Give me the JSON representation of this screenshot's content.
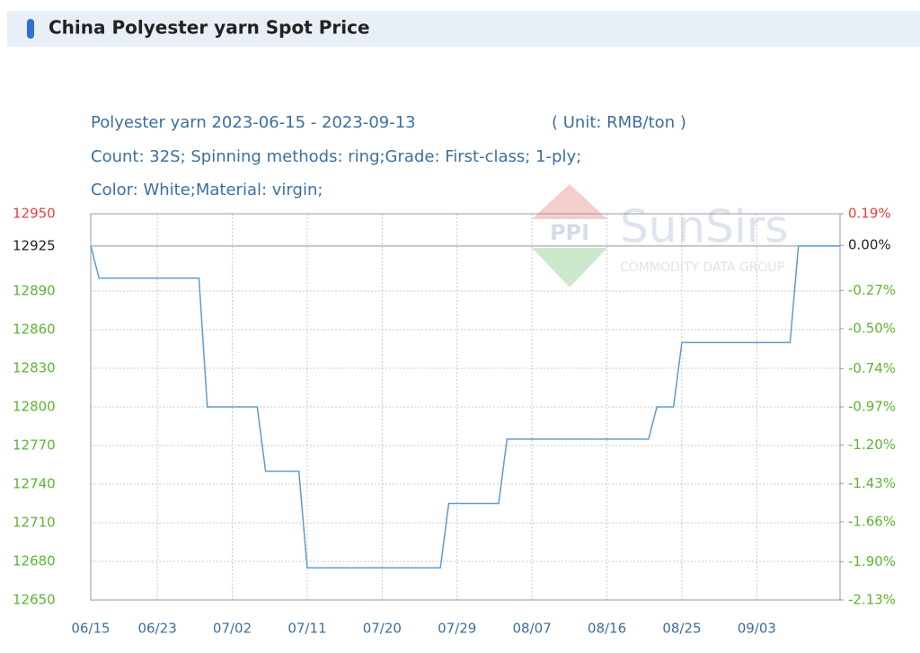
{
  "header": {
    "title": "China Polyester yarn Spot Price"
  },
  "chart_data": {
    "type": "line",
    "subtitle_lines": [
      "Polyester yarn 2023-06-15 - 2023-09-13",
      "( Unit: RMB/ton )",
      "Count: 32S; Spinning methods: ring;Grade: First-class; 1-ply;",
      "Color: White;Material: virgin;"
    ],
    "watermark": {
      "logo": "PPI",
      "brand": "SunSirs",
      "tagline": "COMMODITY DATA GROUP"
    },
    "x": [
      "06/15",
      "06/16",
      "06/28",
      "06/29",
      "07/05",
      "07/06",
      "07/10",
      "07/11",
      "07/27",
      "07/28",
      "08/03",
      "08/04",
      "08/21",
      "08/22",
      "08/24",
      "08/25",
      "09/07",
      "09/08",
      "09/13"
    ],
    "values": [
      12925,
      12900,
      12900,
      12800,
      12800,
      12750,
      12750,
      12675,
      12675,
      12725,
      12725,
      12775,
      12775,
      12800,
      12800,
      12850,
      12850,
      12925,
      12925
    ],
    "color": "#5b9bd5",
    "baseline": 12925,
    "xlim": [
      "06/15",
      "09/13"
    ],
    "xticks": [
      "06/15",
      "06/23",
      "07/02",
      "07/11",
      "07/20",
      "07/29",
      "08/07",
      "08/16",
      "08/25",
      "09/03"
    ],
    "ylim": [
      12650,
      12950
    ],
    "yticks": [
      12950,
      12925,
      12890,
      12860,
      12830,
      12800,
      12770,
      12740,
      12710,
      12680,
      12650
    ],
    "y2lim": [
      -2.13,
      0.19
    ],
    "y2ticks": [
      {
        "value": 0.19,
        "label": "0.19%"
      },
      {
        "value": 0.0,
        "label": "0.00%"
      },
      {
        "value": -0.27,
        "label": "-0.27%"
      },
      {
        "value": -0.5,
        "label": "-0.50%"
      },
      {
        "value": -0.74,
        "label": "-0.74%"
      },
      {
        "value": -0.97,
        "label": "-0.97%"
      },
      {
        "value": -1.2,
        "label": "-1.20%"
      },
      {
        "value": -1.43,
        "label": "-1.43%"
      },
      {
        "value": -1.66,
        "label": "-1.66%"
      },
      {
        "value": -1.9,
        "label": "-1.90%"
      },
      {
        "value": -2.13,
        "label": "-2.13%"
      }
    ],
    "grid": true,
    "up_color": "#e8403a",
    "flat_color": "#222222",
    "down_color": "#5cb531"
  }
}
